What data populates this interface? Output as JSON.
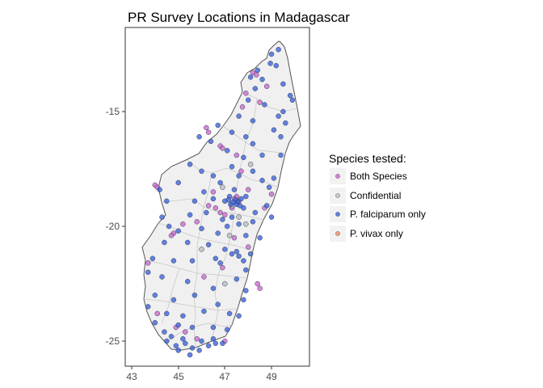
{
  "chart": {
    "title": "PR Survey Locations in Madagascar",
    "x_ticks": [
      "43",
      "45",
      "47",
      "49"
    ],
    "y_ticks": [
      "-15",
      "-20",
      "-25"
    ],
    "legend_title": "Species tested:",
    "legend": [
      {
        "label": "Both Species",
        "color": "#cc66cc"
      },
      {
        "label": "Confidential",
        "color": "#bdbdbd"
      },
      {
        "label": "P. falciparum only",
        "color": "#3a60d8"
      },
      {
        "label": "P. vivax only",
        "color": "#f08a5c"
      }
    ]
  },
  "chart_data": {
    "type": "scatter",
    "title": "PR Survey Locations in Madagascar",
    "xlabel": "",
    "ylabel": "",
    "xlim": [
      42.85,
      50.7
    ],
    "ylim": [
      -25.9,
      -11.6
    ],
    "x_ticks": [
      43,
      45,
      47,
      49
    ],
    "y_ticks": [
      -15,
      -20,
      -25
    ],
    "grid": false,
    "legend_placement": "right",
    "series": [
      {
        "name": "Both Species",
        "color": "#cc66cc",
        "points": [
          [
            48.2,
            -13.3
          ],
          [
            48.35,
            -13.4
          ],
          [
            48.8,
            -13.9
          ],
          [
            47.9,
            -14.2
          ],
          [
            48.5,
            -14.6
          ],
          [
            47.75,
            -14.8
          ],
          [
            46.2,
            -15.7
          ],
          [
            46.3,
            -15.9
          ],
          [
            46.8,
            -16.5
          ],
          [
            46.9,
            -16.6
          ],
          [
            47.5,
            -16.9
          ],
          [
            47.7,
            -17.6
          ],
          [
            44.0,
            -18.2
          ],
          [
            44.1,
            -18.3
          ],
          [
            45.2,
            -19.9
          ],
          [
            44.8,
            -20.3
          ],
          [
            44.7,
            -20.4
          ],
          [
            45.8,
            -19.8
          ],
          [
            46.3,
            -19.1
          ],
          [
            46.5,
            -18.5
          ],
          [
            47.5,
            -18.7
          ],
          [
            47.6,
            -18.9
          ],
          [
            47.4,
            -18.8
          ],
          [
            47.3,
            -19.2
          ],
          [
            46.8,
            -19.4
          ],
          [
            47.0,
            -19.5
          ],
          [
            46.6,
            -19.2
          ],
          [
            48.0,
            -18.4
          ],
          [
            49.0,
            -18.6
          ],
          [
            48.7,
            -19.2
          ],
          [
            43.7,
            -21.6
          ],
          [
            46.9,
            -21.8
          ],
          [
            48.0,
            -20.9
          ],
          [
            47.4,
            -20.5
          ],
          [
            46.1,
            -22.2
          ],
          [
            48.4,
            -22.5
          ],
          [
            48.5,
            -22.7
          ],
          [
            44.9,
            -24.4
          ],
          [
            45.3,
            -24.6
          ],
          [
            47.0,
            -25.0
          ],
          [
            44.1,
            -23.8
          ],
          [
            45.8,
            -24.9
          ]
        ]
      },
      {
        "name": "Confidential",
        "color": "#bdbdbd",
        "points": [
          [
            47.5,
            -18.9
          ],
          [
            47.3,
            -19.1
          ],
          [
            47.6,
            -19.6
          ],
          [
            46.9,
            -18.3
          ],
          [
            47.2,
            -20.4
          ],
          [
            47.0,
            -22.5
          ],
          [
            48.1,
            -17.3
          ],
          [
            46.0,
            -21.0
          ],
          [
            47.9,
            -19.9
          ]
        ]
      },
      {
        "name": "P. falciparum only",
        "color": "#3a60d8",
        "points": [
          [
            49.3,
            -12.3
          ],
          [
            49.0,
            -12.5
          ],
          [
            48.95,
            -12.9
          ],
          [
            49.2,
            -13.0
          ],
          [
            48.4,
            -13.2
          ],
          [
            48.1,
            -13.5
          ],
          [
            48.6,
            -13.6
          ],
          [
            49.5,
            -13.8
          ],
          [
            48.3,
            -14.0
          ],
          [
            49.8,
            -14.3
          ],
          [
            49.9,
            -14.5
          ],
          [
            48.0,
            -14.5
          ],
          [
            48.7,
            -14.7
          ],
          [
            49.5,
            -15.0
          ],
          [
            49.3,
            -15.2
          ],
          [
            47.6,
            -15.2
          ],
          [
            48.2,
            -15.4
          ],
          [
            49.6,
            -15.5
          ],
          [
            49.1,
            -15.8
          ],
          [
            46.7,
            -15.6
          ],
          [
            47.3,
            -15.9
          ],
          [
            47.9,
            -16.1
          ],
          [
            49.4,
            -16.1
          ],
          [
            48.2,
            -16.4
          ],
          [
            45.9,
            -16.1
          ],
          [
            46.4,
            -16.3
          ],
          [
            47.1,
            -16.7
          ],
          [
            48.6,
            -16.9
          ],
          [
            49.4,
            -16.9
          ],
          [
            47.8,
            -17.0
          ],
          [
            45.5,
            -17.3
          ],
          [
            46.0,
            -17.6
          ],
          [
            47.3,
            -17.4
          ],
          [
            48.2,
            -17.6
          ],
          [
            49.1,
            -17.9
          ],
          [
            44.2,
            -18.4
          ],
          [
            45.0,
            -18.1
          ],
          [
            46.5,
            -17.8
          ],
          [
            47.6,
            -17.8
          ],
          [
            48.6,
            -18.0
          ],
          [
            48.9,
            -18.3
          ],
          [
            46.1,
            -18.5
          ],
          [
            46.8,
            -18.1
          ],
          [
            47.4,
            -18.4
          ],
          [
            47.9,
            -18.7
          ],
          [
            44.5,
            -18.9
          ],
          [
            45.7,
            -18.9
          ],
          [
            46.5,
            -18.8
          ],
          [
            47.2,
            -18.7
          ],
          [
            47.45,
            -18.85
          ],
          [
            47.55,
            -18.95
          ],
          [
            47.35,
            -18.95
          ],
          [
            47.5,
            -19.05
          ],
          [
            47.7,
            -18.8
          ],
          [
            47.25,
            -19.05
          ],
          [
            47.15,
            -18.85
          ],
          [
            47.65,
            -19.1
          ],
          [
            47.0,
            -18.9
          ],
          [
            47.8,
            -19.2
          ],
          [
            48.3,
            -19.4
          ],
          [
            48.8,
            -19.1
          ],
          [
            44.3,
            -19.6
          ],
          [
            45.5,
            -19.5
          ],
          [
            46.2,
            -19.4
          ],
          [
            46.9,
            -19.7
          ],
          [
            47.3,
            -19.6
          ],
          [
            47.6,
            -19.9
          ],
          [
            48.2,
            -19.8
          ],
          [
            49.0,
            -19.6
          ],
          [
            44.6,
            -20.0
          ],
          [
            45.0,
            -20.2
          ],
          [
            46.0,
            -20.1
          ],
          [
            46.7,
            -20.3
          ],
          [
            47.1,
            -20.0
          ],
          [
            47.9,
            -20.4
          ],
          [
            48.5,
            -20.5
          ],
          [
            44.4,
            -20.7
          ],
          [
            45.4,
            -20.7
          ],
          [
            46.3,
            -20.8
          ],
          [
            47.0,
            -21.0
          ],
          [
            47.3,
            -21.2
          ],
          [
            47.6,
            -21.3
          ],
          [
            47.5,
            -21.1
          ],
          [
            47.8,
            -21.5
          ],
          [
            48.1,
            -21.2
          ],
          [
            46.6,
            -21.4
          ],
          [
            46.8,
            -21.6
          ],
          [
            43.9,
            -21.4
          ],
          [
            44.8,
            -21.5
          ],
          [
            45.6,
            -21.5
          ],
          [
            47.9,
            -21.9
          ],
          [
            43.7,
            -22.0
          ],
          [
            44.3,
            -22.2
          ],
          [
            45.4,
            -22.4
          ],
          [
            46.5,
            -22.7
          ],
          [
            47.5,
            -22.3
          ],
          [
            47.9,
            -22.8
          ],
          [
            44.0,
            -23.0
          ],
          [
            44.8,
            -23.2
          ],
          [
            45.7,
            -23.0
          ],
          [
            46.7,
            -23.4
          ],
          [
            47.8,
            -23.2
          ],
          [
            43.7,
            -23.5
          ],
          [
            44.5,
            -23.8
          ],
          [
            45.2,
            -23.9
          ],
          [
            46.1,
            -23.7
          ],
          [
            47.2,
            -23.8
          ],
          [
            47.6,
            -23.9
          ],
          [
            44.0,
            -24.2
          ],
          [
            44.4,
            -24.6
          ],
          [
            45.0,
            -24.3
          ],
          [
            45.6,
            -24.4
          ],
          [
            46.5,
            -24.4
          ],
          [
            47.1,
            -24.5
          ],
          [
            44.5,
            -25.0
          ],
          [
            44.9,
            -25.2
          ],
          [
            45.3,
            -25.1
          ],
          [
            45.6,
            -25.3
          ],
          [
            45.9,
            -25.4
          ],
          [
            46.3,
            -25.2
          ],
          [
            46.6,
            -25.1
          ],
          [
            46.9,
            -25.1
          ],
          [
            45.0,
            -25.4
          ],
          [
            45.5,
            -25.6
          ],
          [
            46.0,
            -25.0
          ],
          [
            45.2,
            -24.9
          ],
          [
            44.7,
            -24.8
          ],
          [
            46.5,
            -24.9
          ]
        ]
      },
      {
        "name": "P. vivax only",
        "color": "#f08a5c",
        "points": []
      }
    ]
  }
}
